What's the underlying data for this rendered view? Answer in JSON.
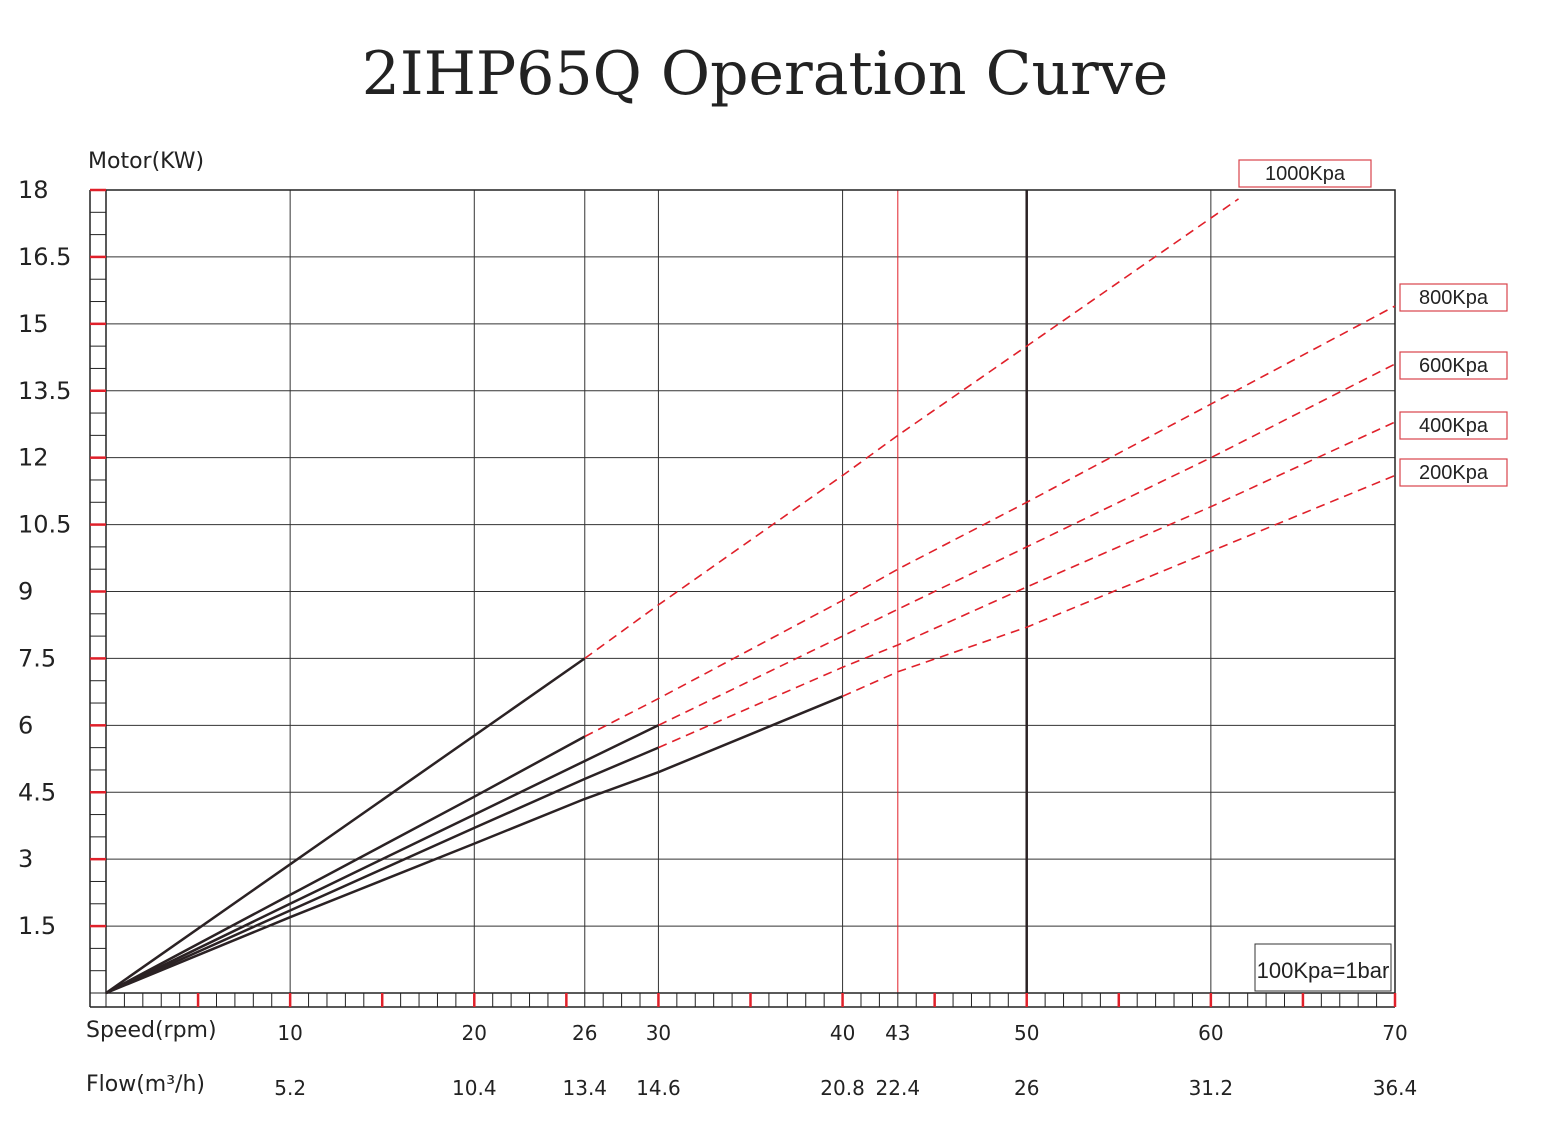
{
  "chart_data": {
    "type": "line",
    "title": "2IHP65Q Operation Curve",
    "ylabel": "Motor(KW)",
    "xlabel": "Speed(rpm)",
    "flow_label": "Flow(m³/h)",
    "ylim": [
      0,
      18
    ],
    "xlim": [
      0,
      70
    ],
    "y_ticks": [
      {
        "value": 18,
        "label": "18"
      },
      {
        "value": 16.5,
        "label": "16.5"
      },
      {
        "value": 15,
        "label": "15"
      },
      {
        "value": 13.5,
        "label": "13.5"
      },
      {
        "value": 12,
        "label": "12"
      },
      {
        "value": 10.5,
        "label": "10.5"
      },
      {
        "value": 9,
        "label": "9"
      },
      {
        "value": 7.5,
        "label": "7.5"
      },
      {
        "value": 6,
        "label": "6"
      },
      {
        "value": 4.5,
        "label": "4.5"
      },
      {
        "value": 3,
        "label": "3"
      },
      {
        "value": 1.5,
        "label": "1.5"
      }
    ],
    "x_ticks": [
      {
        "value": 10,
        "label": "10",
        "flow": "5.2"
      },
      {
        "value": 20,
        "label": "20",
        "flow": "10.4"
      },
      {
        "value": 26,
        "label": "26",
        "flow": "13.4"
      },
      {
        "value": 30,
        "label": "30",
        "flow": "14.6"
      },
      {
        "value": 40,
        "label": "40",
        "flow": "20.8"
      },
      {
        "value": 43,
        "label": "43",
        "flow": "22.4"
      },
      {
        "value": 50,
        "label": "50",
        "flow": "26"
      },
      {
        "value": 60,
        "label": "60",
        "flow": "31.2"
      },
      {
        "value": 70,
        "label": "70",
        "flow": "36.4"
      }
    ],
    "vertical_gridlines": [
      10,
      20,
      26,
      30,
      40,
      50,
      60
    ],
    "red_reference_x": 43,
    "dark_reference_x": 50,
    "series": [
      {
        "name": "1000Kpa",
        "solid": [
          [
            0,
            0
          ],
          [
            26,
            7.5
          ]
        ],
        "dashed": [
          [
            26,
            7.5
          ],
          [
            30,
            8.7
          ],
          [
            40,
            11.6
          ],
          [
            43,
            12.5
          ],
          [
            50,
            14.5
          ],
          [
            61.5,
            17.8
          ]
        ]
      },
      {
        "name": "800Kpa",
        "solid": [
          [
            0,
            0
          ],
          [
            10,
            2.2
          ],
          [
            20,
            4.4
          ],
          [
            26,
            5.75
          ]
        ],
        "dashed": [
          [
            26,
            5.75
          ],
          [
            30,
            6.6
          ],
          [
            40,
            8.8
          ],
          [
            43,
            9.5
          ],
          [
            50,
            11.0
          ],
          [
            60,
            13.2
          ],
          [
            70,
            15.4
          ]
        ]
      },
      {
        "name": "600Kpa",
        "solid": [
          [
            0,
            0
          ],
          [
            10,
            2.0
          ],
          [
            20,
            4.0
          ],
          [
            26,
            5.2
          ],
          [
            30,
            6.0
          ]
        ],
        "dashed": [
          [
            30,
            6.0
          ],
          [
            40,
            8.0
          ],
          [
            43,
            8.6
          ],
          [
            50,
            10.0
          ],
          [
            60,
            12.0
          ],
          [
            70,
            14.1
          ]
        ]
      },
      {
        "name": "400Kpa",
        "solid": [
          [
            0,
            0
          ],
          [
            10,
            1.85
          ],
          [
            20,
            3.7
          ],
          [
            26,
            4.8
          ],
          [
            30,
            5.5
          ]
        ],
        "dashed": [
          [
            30,
            5.5
          ],
          [
            40,
            7.3
          ],
          [
            43,
            7.8
          ],
          [
            50,
            9.1
          ],
          [
            60,
            10.9
          ],
          [
            70,
            12.8
          ]
        ]
      },
      {
        "name": "200Kpa",
        "solid": [
          [
            0,
            0
          ],
          [
            10,
            1.7
          ],
          [
            20,
            3.35
          ],
          [
            26,
            4.35
          ],
          [
            30,
            4.95
          ],
          [
            40,
            6.65
          ]
        ],
        "dashed": [
          [
            40,
            6.65
          ],
          [
            43,
            7.2
          ],
          [
            50,
            8.2
          ],
          [
            60,
            9.9
          ],
          [
            70,
            11.6
          ]
        ]
      }
    ],
    "legend_position": "right",
    "note": "100Kpa=1bar",
    "grid": true
  },
  "colors": {
    "solid_line": "#2b2224",
    "dashed_line": "#e0202a",
    "grid": "#333333",
    "red_tick": "#e0202a",
    "red_reference": "#e0202a",
    "legend_border": "#d9434b"
  }
}
